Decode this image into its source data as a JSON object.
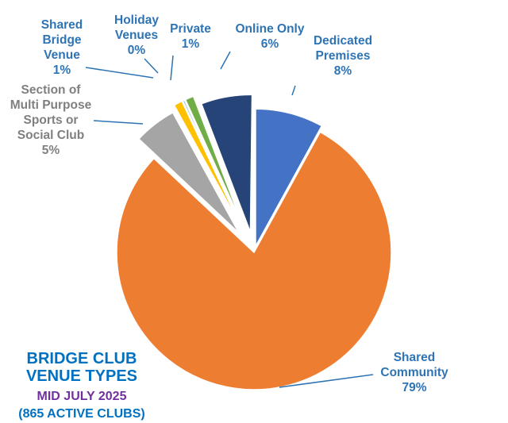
{
  "chart_data": {
    "type": "pie",
    "exploded": true,
    "categories": [
      "Dedicated Premises",
      "Shared Community",
      "Section of Multi Purpose Sports or Social Club",
      "Shared Bridge Venue",
      "Holiday Venues",
      "Private",
      "Online Only"
    ],
    "values": [
      8,
      79,
      5,
      1,
      0,
      1,
      6
    ],
    "value_labels": [
      "8%",
      "79%",
      "5%",
      "1%",
      "0%",
      "1%",
      "6%"
    ],
    "colors": [
      "#4472C4",
      "#ED7D31",
      "#A5A5A5",
      "#FFC000",
      "#5B9BD5",
      "#70AD47",
      "#264478"
    ],
    "label_colors": [
      "#2E74B5",
      "#2E74B5",
      "#7F7F7F",
      "#2E74B5",
      "#2E74B5",
      "#2E74B5",
      "#2E74B5"
    ],
    "title": "BRIDGE CLUB VENUE TYPES",
    "subtitle": "MID JULY 2025",
    "subtitle2": "(865 ACTIVE CLUBS)",
    "title_color": "#0070C0",
    "subtitle_color": "#7030A0",
    "legend": "none"
  }
}
